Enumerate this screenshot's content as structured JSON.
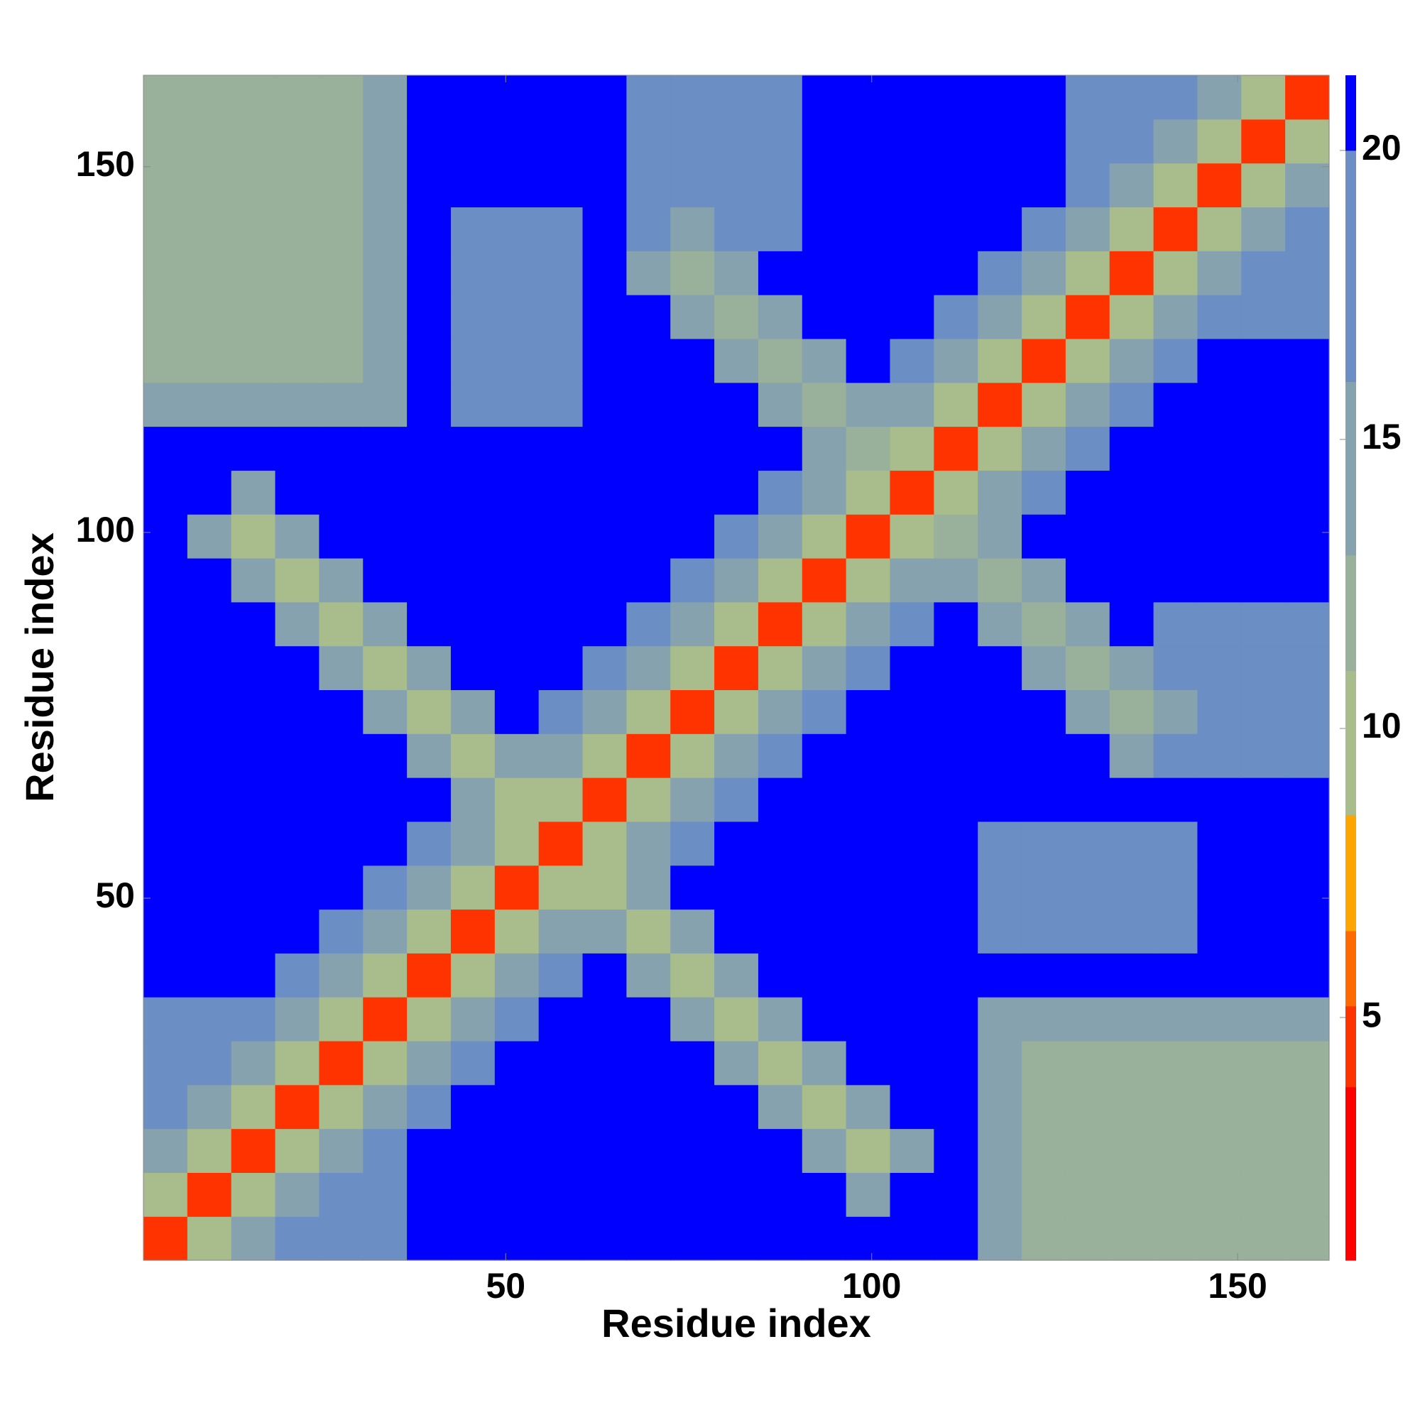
{
  "chart_data": {
    "type": "heatmap",
    "x_label": "Residue index",
    "y_label": "Residue index",
    "x": [
      3.5,
      9.5,
      15.5,
      21.5,
      27.5,
      33.5,
      39.5,
      45.5,
      51.5,
      57.5,
      63.5,
      69.5,
      75.5,
      81.5,
      87.5,
      93.5,
      99.5,
      105.5,
      111.5,
      117.5,
      123.5,
      129.5,
      135.5,
      141.5,
      147.5,
      153.5,
      159.5
    ],
    "y": [
      3.5,
      9.5,
      15.5,
      21.5,
      27.5,
      33.5,
      39.5,
      45.5,
      51.5,
      57.5,
      63.5,
      69.5,
      75.5,
      81.5,
      87.5,
      93.5,
      99.5,
      105.5,
      111.5,
      117.5,
      123.5,
      129.5,
      135.5,
      141.5,
      147.5,
      153.5,
      159.5
    ],
    "values": [
      [
        5,
        10,
        15,
        18,
        18,
        18,
        21,
        21,
        21,
        21,
        21,
        21,
        21,
        21,
        21,
        21,
        21,
        21,
        21,
        15,
        13,
        13,
        13,
        13,
        13,
        13,
        13
      ],
      [
        10,
        5,
        10,
        15,
        18,
        18,
        21,
        21,
        21,
        21,
        21,
        21,
        21,
        21,
        21,
        21,
        15,
        21,
        21,
        15,
        13,
        12,
        12,
        12,
        12,
        12,
        13
      ],
      [
        15,
        10,
        5,
        10,
        15,
        18,
        21,
        21,
        21,
        21,
        21,
        21,
        21,
        21,
        21,
        15,
        11,
        15,
        21,
        15,
        13,
        12,
        12,
        12,
        12,
        12,
        13
      ],
      [
        18,
        15,
        10,
        5,
        10,
        15,
        18,
        21,
        21,
        21,
        21,
        21,
        21,
        21,
        15,
        11,
        15,
        21,
        21,
        15,
        13,
        12,
        12,
        12,
        12,
        12,
        13
      ],
      [
        18,
        18,
        15,
        10,
        5,
        10,
        15,
        18,
        21,
        21,
        21,
        21,
        21,
        15,
        11,
        15,
        21,
        21,
        21,
        15,
        13,
        12,
        12,
        12,
        12,
        12,
        13
      ],
      [
        18,
        18,
        18,
        15,
        10,
        5,
        10,
        15,
        18,
        21,
        21,
        21,
        15,
        11,
        15,
        21,
        21,
        21,
        21,
        15,
        15,
        15,
        15,
        15,
        15,
        15,
        15
      ],
      [
        21,
        21,
        21,
        18,
        15,
        10,
        5,
        10,
        15,
        18,
        21,
        15,
        11,
        15,
        21,
        21,
        21,
        21,
        21,
        21,
        21,
        21,
        21,
        21,
        21,
        21,
        21
      ],
      [
        21,
        21,
        21,
        21,
        18,
        15,
        10,
        5,
        10,
        15,
        15,
        11,
        15,
        21,
        21,
        21,
        21,
        21,
        21,
        19,
        19,
        19,
        19,
        19,
        21,
        21,
        21
      ],
      [
        21,
        21,
        21,
        21,
        21,
        18,
        15,
        10,
        5,
        10,
        11,
        15,
        21,
        21,
        21,
        21,
        21,
        21,
        21,
        19,
        19,
        19,
        19,
        19,
        21,
        21,
        21
      ],
      [
        21,
        21,
        21,
        21,
        21,
        21,
        18,
        15,
        10,
        5,
        10,
        15,
        18,
        21,
        21,
        21,
        21,
        21,
        21,
        19,
        19,
        19,
        19,
        19,
        21,
        21,
        21
      ],
      [
        21,
        21,
        21,
        21,
        21,
        21,
        21,
        15,
        11,
        10,
        5,
        10,
        15,
        18,
        21,
        21,
        21,
        21,
        21,
        21,
        21,
        21,
        21,
        21,
        21,
        21,
        21
      ],
      [
        21,
        21,
        21,
        21,
        21,
        21,
        15,
        11,
        15,
        15,
        10,
        5,
        10,
        15,
        18,
        21,
        21,
        21,
        21,
        21,
        21,
        21,
        16,
        19,
        19,
        19,
        19
      ],
      [
        21,
        21,
        21,
        21,
        21,
        15,
        11,
        15,
        21,
        18,
        15,
        10,
        5,
        10,
        15,
        18,
        21,
        21,
        21,
        21,
        21,
        16,
        13,
        16,
        19,
        19,
        19
      ],
      [
        21,
        21,
        21,
        21,
        15,
        11,
        15,
        21,
        21,
        21,
        18,
        15,
        10,
        5,
        10,
        15,
        18,
        21,
        21,
        21,
        16,
        13,
        16,
        19,
        19,
        19,
        19
      ],
      [
        21,
        21,
        21,
        15,
        11,
        15,
        21,
        21,
        21,
        21,
        21,
        18,
        15,
        10,
        5,
        10,
        15,
        18,
        21,
        16,
        13,
        16,
        21,
        19,
        19,
        19,
        19
      ],
      [
        21,
        21,
        15,
        11,
        15,
        21,
        21,
        21,
        21,
        21,
        21,
        21,
        18,
        15,
        10,
        5,
        10,
        15,
        16,
        13,
        16,
        21,
        21,
        21,
        21,
        21,
        21
      ],
      [
        21,
        15,
        11,
        15,
        21,
        21,
        21,
        21,
        21,
        21,
        21,
        21,
        21,
        18,
        15,
        10,
        5,
        10,
        13,
        16,
        21,
        21,
        21,
        21,
        21,
        21,
        21
      ],
      [
        21,
        21,
        15,
        21,
        21,
        21,
        21,
        21,
        21,
        21,
        21,
        21,
        21,
        21,
        18,
        15,
        10,
        5,
        10,
        15,
        18,
        21,
        21,
        21,
        21,
        21,
        21
      ],
      [
        21,
        21,
        21,
        21,
        21,
        21,
        21,
        21,
        21,
        21,
        21,
        21,
        21,
        21,
        21,
        16,
        13,
        10,
        5,
        10,
        15,
        18,
        21,
        21,
        21,
        21,
        21
      ],
      [
        15,
        15,
        15,
        15,
        15,
        15,
        21,
        19,
        19,
        19,
        21,
        21,
        21,
        21,
        16,
        13,
        16,
        15,
        10,
        5,
        10,
        15,
        18,
        21,
        21,
        21,
        21
      ],
      [
        13,
        13,
        13,
        13,
        13,
        15,
        21,
        19,
        19,
        19,
        21,
        21,
        21,
        16,
        13,
        16,
        21,
        18,
        15,
        10,
        5,
        10,
        15,
        18,
        21,
        21,
        21
      ],
      [
        13,
        12,
        12,
        12,
        12,
        15,
        21,
        19,
        19,
        19,
        21,
        21,
        16,
        13,
        16,
        21,
        21,
        21,
        18,
        15,
        10,
        5,
        10,
        15,
        18,
        18,
        18
      ],
      [
        13,
        12,
        12,
        12,
        12,
        15,
        21,
        19,
        19,
        19,
        21,
        16,
        13,
        16,
        21,
        21,
        21,
        21,
        21,
        18,
        15,
        10,
        5,
        10,
        15,
        18,
        18
      ],
      [
        13,
        12,
        12,
        12,
        12,
        15,
        21,
        19,
        19,
        19,
        21,
        19,
        16,
        19,
        19,
        21,
        21,
        21,
        21,
        21,
        18,
        15,
        10,
        5,
        10,
        15,
        18
      ],
      [
        13,
        12,
        12,
        12,
        12,
        15,
        21,
        21,
        21,
        21,
        21,
        19,
        19,
        19,
        19,
        21,
        21,
        21,
        21,
        21,
        21,
        18,
        15,
        10,
        5,
        10,
        15
      ],
      [
        13,
        12,
        12,
        12,
        12,
        15,
        21,
        21,
        21,
        21,
        21,
        19,
        19,
        19,
        19,
        21,
        21,
        21,
        21,
        21,
        21,
        18,
        18,
        15,
        10,
        5,
        10
      ],
      [
        13,
        13,
        13,
        13,
        13,
        15,
        21,
        21,
        21,
        21,
        21,
        19,
        19,
        19,
        19,
        21,
        21,
        21,
        21,
        21,
        21,
        18,
        18,
        18,
        15,
        10,
        5
      ]
    ],
    "xlim": [
      0.5,
      162.5
    ],
    "ylim": [
      0.5,
      162.5
    ],
    "xticks": [
      50,
      100,
      150
    ],
    "yticks": [
      50,
      100,
      150
    ],
    "colorbar": {
      "zlim": [
        0.8,
        21.3
      ],
      "ticks": [
        5,
        10,
        15,
        20
      ],
      "steps": [
        {
          "value": 3.8,
          "color": "#ff0000"
        },
        {
          "value": 5.2,
          "color": "#ff3300"
        },
        {
          "value": 6.5,
          "color": "#ff6a00"
        },
        {
          "value": 8.5,
          "color": "#ffa500"
        },
        {
          "value": 11,
          "color": "#a8bc8c"
        },
        {
          "value": 13,
          "color": "#99b09a"
        },
        {
          "value": 16,
          "color": "#86a2ae"
        },
        {
          "value": 20,
          "color": "#6b8fc4"
        },
        {
          "value": 21.3,
          "color": "#0000ff"
        }
      ]
    }
  }
}
